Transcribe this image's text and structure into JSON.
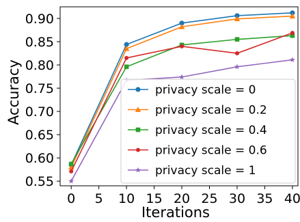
{
  "chart_data": {
    "type": "line",
    "title": "",
    "xlabel": "Iterations",
    "ylabel": "Accuracy",
    "x": [
      0,
      10,
      20,
      30,
      40
    ],
    "xlim": [
      -2,
      41
    ],
    "ylim": [
      0.54,
      0.925
    ],
    "xticks": [
      0,
      5,
      10,
      15,
      20,
      25,
      30,
      35,
      40
    ],
    "yticks": [
      0.55,
      0.6,
      0.65,
      0.7,
      0.75,
      0.8,
      0.85,
      0.9
    ],
    "xtick_labels": [
      "0",
      "5",
      "10",
      "15",
      "20",
      "25",
      "30",
      "35",
      "40"
    ],
    "ytick_labels": [
      "0.55",
      "0.60",
      "0.65",
      "0.70",
      "0.75",
      "0.80",
      "0.85",
      "0.90"
    ],
    "grid": false,
    "legend_position": "lower-right",
    "series": [
      {
        "name": "privacy scale = 0",
        "color": "#1f77b4",
        "marker": "circle",
        "values": [
          0.585,
          0.844,
          0.89,
          0.906,
          0.912
        ]
      },
      {
        "name": "privacy scale = 0.2",
        "color": "#ff7f0e",
        "marker": "triangle",
        "values": [
          0.58,
          0.835,
          0.882,
          0.899,
          0.905
        ]
      },
      {
        "name": "privacy scale = 0.4",
        "color": "#2ca02c",
        "marker": "square",
        "values": [
          0.587,
          0.796,
          0.843,
          0.855,
          0.863
        ]
      },
      {
        "name": "privacy scale = 0.6",
        "color": "#d62728",
        "marker": "circle-small",
        "values": [
          0.571,
          0.815,
          0.84,
          0.825,
          0.869
        ]
      },
      {
        "name": "privacy scale = 1",
        "color": "#9467bd",
        "marker": "star",
        "values": [
          0.55,
          0.767,
          0.774,
          0.796,
          0.811
        ]
      }
    ]
  }
}
